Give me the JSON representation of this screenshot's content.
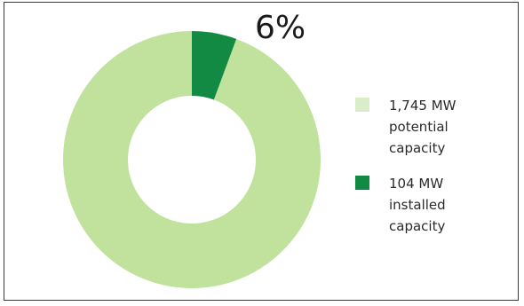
{
  "chart_data": {
    "type": "pie",
    "donut": true,
    "title": "",
    "callout": "6%",
    "slices": [
      {
        "label": "1,745 MW potential capacity",
        "value": 1745,
        "color": "#c0e29c"
      },
      {
        "label": "104 MW installed capacity",
        "value": 104,
        "color": "#138a44"
      }
    ],
    "legend_position": "right",
    "legend": [
      {
        "text": "1,745 MW potential capacity",
        "color": "#d9eec8"
      },
      {
        "text": "104 MW installed capacity",
        "color": "#138a44"
      }
    ]
  }
}
